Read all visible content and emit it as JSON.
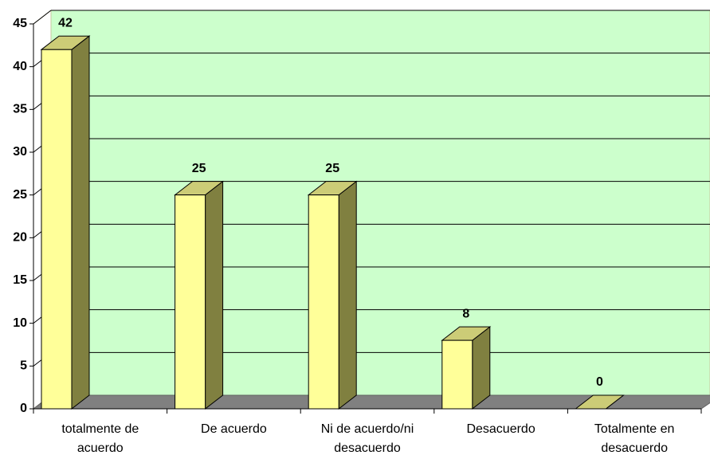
{
  "chart_data": {
    "type": "bar3d",
    "categories": [
      "totalmente  de acuerdo",
      "De acuerdo",
      "Ni de acuerdo/ni desacuerdo",
      "Desacuerdo",
      "Totalmente en desacuerdo"
    ],
    "values": [
      42,
      25,
      25,
      8,
      0
    ],
    "color": "#ffff99",
    "ylim": [
      0,
      45
    ],
    "yticks": [
      0,
      5,
      10,
      15,
      20,
      25,
      30,
      35,
      40,
      45
    ],
    "grid": true
  }
}
